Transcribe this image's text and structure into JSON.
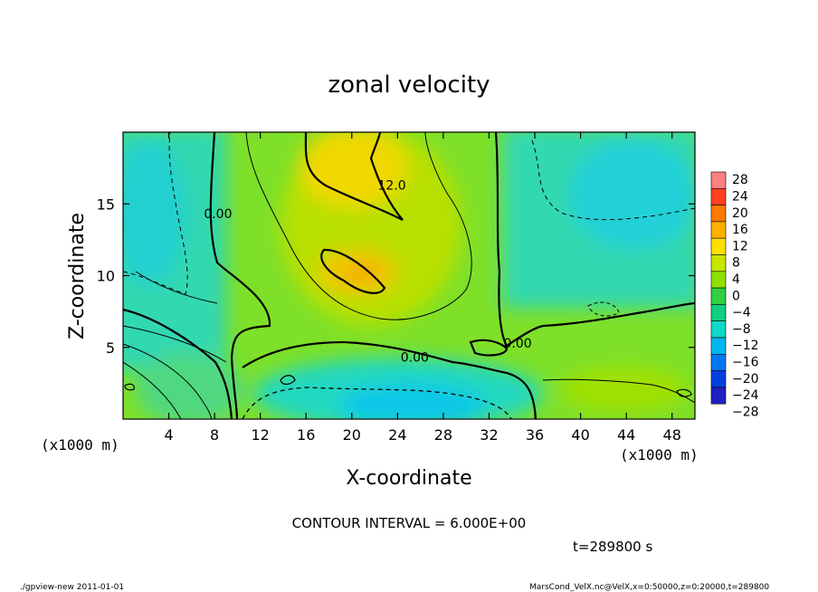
{
  "chart_data": {
    "type": "heatmap",
    "title": "zonal velocity",
    "xlabel": "X-coordinate",
    "ylabel": "Z-coordinate",
    "x_unit_label": "(x1000 m)",
    "y_unit_label": "(x1000 m)",
    "xlim": [
      0,
      50
    ],
    "ylim": [
      0,
      20
    ],
    "x_ticks": [
      4,
      8,
      12,
      16,
      20,
      24,
      28,
      32,
      36,
      40,
      44,
      48
    ],
    "y_ticks": [
      5,
      10,
      15
    ],
    "colorbar": {
      "levels": [
        28,
        24,
        20,
        16,
        12,
        8,
        4,
        0,
        -4,
        -8,
        -12,
        -16,
        -20,
        -24,
        -28
      ],
      "labels": [
        "28",
        "24",
        "20",
        "16",
        "12",
        "8",
        "4",
        "0",
        "−4",
        "−8",
        "−12",
        "−16",
        "−20",
        "−24",
        "−28"
      ],
      "colors": [
        "#ff8080",
        "#ff4020",
        "#ff7a00",
        "#ffb000",
        "#ffe000",
        "#c8e600",
        "#8ee000",
        "#30d040",
        "#10d080",
        "#10d8c8",
        "#00b8f0",
        "#0078f0",
        "#0040e0",
        "#2020c0",
        "#6020a0"
      ]
    },
    "contour_labels": [
      {
        "text": "12.0",
        "x": 23.5,
        "z": 16.0
      },
      {
        "text": "0.00",
        "x": 8.3,
        "z": 14.0
      },
      {
        "text": "0.00",
        "x": 25.5,
        "z": 4.0
      },
      {
        "text": "0.00",
        "x": 34.5,
        "z": 5.0
      }
    ],
    "grid": false,
    "legend": "right (colorbar)"
  },
  "footer": {
    "contour_interval": "CONTOUR INTERVAL = 6.000E+00",
    "time": "t=289800 s",
    "program": "./gpview-new  2011-01-01",
    "source": "MarsCond_VelX.nc@VelX,x=0:50000,z=0:20000,t=289800"
  }
}
